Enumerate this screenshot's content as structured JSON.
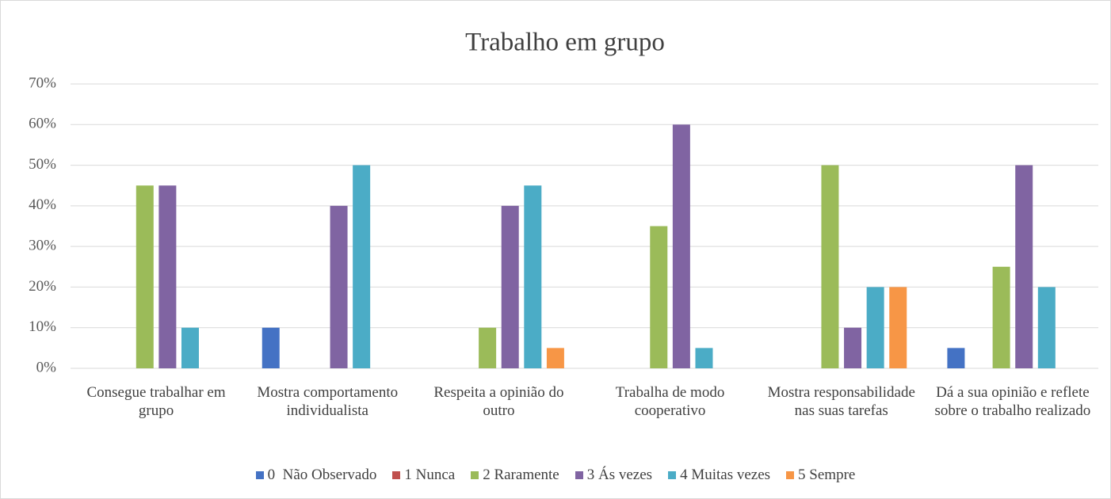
{
  "chart_data": {
    "type": "bar",
    "title": "Trabalho em grupo",
    "categories": [
      "Consegue trabalhar em grupo",
      "Mostra comportamento individualista",
      "Respeita a opinião do outro",
      "Trabalha de modo cooperativo",
      "Mostra responsabilidade nas suas tarefas",
      "Dá a sua opinião e reflete sobre o trabalho realizado"
    ],
    "series": [
      {
        "name": "0  Não Observado",
        "color": "#4472c4",
        "values": [
          0,
          10,
          0,
          0,
          0,
          5
        ]
      },
      {
        "name": "1 Nunca",
        "color": "#c0504d",
        "values": [
          0,
          0,
          0,
          0,
          0,
          0
        ]
      },
      {
        "name": "2 Raramente",
        "color": "#9bbb59",
        "values": [
          45,
          0,
          10,
          35,
          50,
          25
        ]
      },
      {
        "name": "3 Ás vezes",
        "color": "#8064a2",
        "values": [
          45,
          40,
          40,
          60,
          10,
          50
        ]
      },
      {
        "name": "4 Muitas vezes",
        "color": "#4bacc6",
        "values": [
          10,
          50,
          45,
          5,
          20,
          20
        ]
      },
      {
        "name": "5 Sempre",
        "color": "#f79646",
        "values": [
          0,
          0,
          5,
          0,
          20,
          0
        ]
      }
    ],
    "ylim": [
      0,
      70
    ],
    "yticks": [
      {
        "value": 0,
        "label": "0%"
      },
      {
        "value": 10,
        "label": "10%"
      },
      {
        "value": 20,
        "label": "20%"
      },
      {
        "value": 30,
        "label": "30%"
      },
      {
        "value": 40,
        "label": "40%"
      },
      {
        "value": 50,
        "label": "50%"
      },
      {
        "value": 60,
        "label": "60%"
      },
      {
        "value": 70,
        "label": "70%"
      }
    ],
    "grid": true,
    "legend": "bottom"
  }
}
